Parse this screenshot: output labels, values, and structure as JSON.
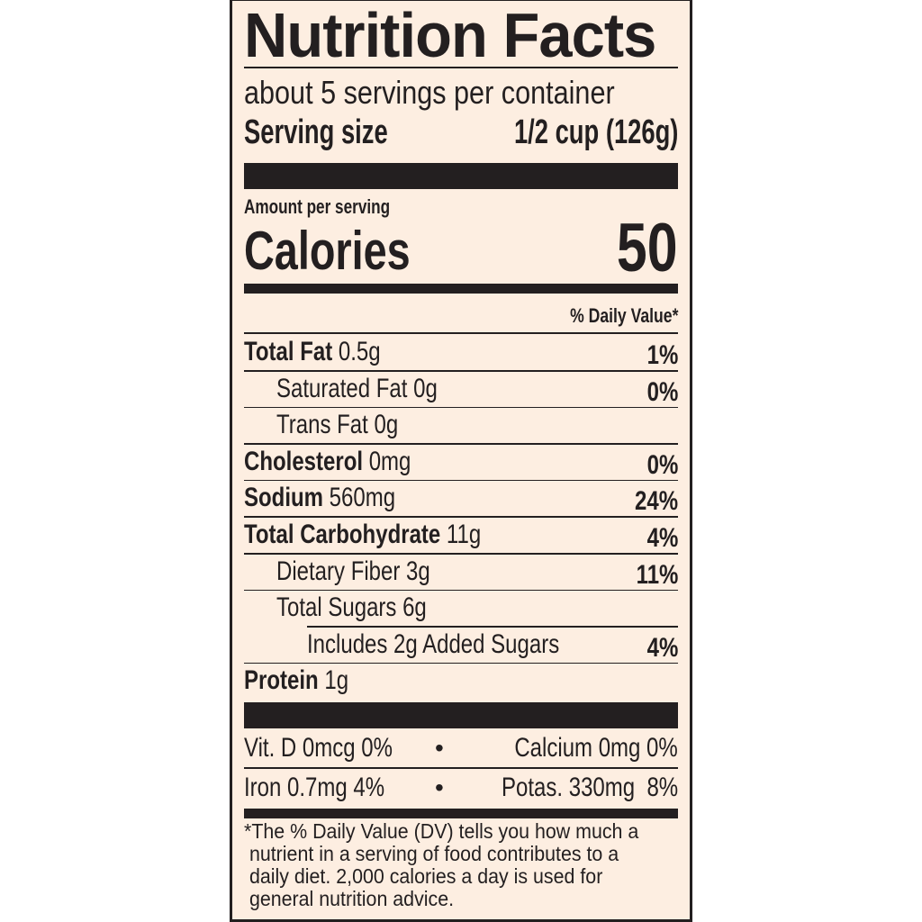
{
  "title": "Nutrition Facts",
  "servings_per_container": "about 5 servings per container",
  "serving_size": {
    "label": "Serving size",
    "value": "1/2 cup (126g)"
  },
  "amount_per_serving": "Amount per serving",
  "calories": {
    "label": "Calories",
    "value": "50"
  },
  "daily_value_header": "% Daily Value*",
  "nutrients": [
    {
      "name": "Total Fat",
      "amount": "0.5g",
      "dv": "1%",
      "bold": true,
      "indent": 0
    },
    {
      "name": "Saturated Fat",
      "amount": "0g",
      "dv": "0%",
      "bold": false,
      "indent": 1
    },
    {
      "name": "Trans Fat",
      "amount": "0g",
      "dv": "",
      "bold": false,
      "indent": 1
    },
    {
      "name": "Cholesterol",
      "amount": "0mg",
      "dv": "0%",
      "bold": true,
      "indent": 0
    },
    {
      "name": "Sodium",
      "amount": "560mg",
      "dv": "24%",
      "bold": true,
      "indent": 0
    },
    {
      "name": "Total Carbohydrate",
      "amount": "11g",
      "dv": "4%",
      "bold": true,
      "indent": 0
    },
    {
      "name": "Dietary Fiber",
      "amount": "3g",
      "dv": "11%",
      "bold": false,
      "indent": 1
    },
    {
      "name": "Total Sugars",
      "amount": "6g",
      "dv": "",
      "bold": false,
      "indent": 1
    },
    {
      "name": "Includes 2g Added Sugars",
      "amount": "",
      "dv": "4%",
      "bold": false,
      "indent": 2
    },
    {
      "name": "Protein",
      "amount": "1g",
      "dv": "",
      "bold": true,
      "indent": 0
    }
  ],
  "vitamins": [
    {
      "left": "Vit. D 0mcg 0%",
      "right": "Calcium 0mg 0%"
    },
    {
      "left": "Iron 0.7mg 4%",
      "right": "Potas. 330mg  8%"
    }
  ],
  "bullet": "•",
  "footnote": [
    "*The % Daily Value (DV) tells you how much a",
    " nutrient in a serving of food contributes to a",
    " daily diet. 2,000 calories a day is used for",
    " general nutrition advice."
  ],
  "colors": {
    "background": "#fdeee1",
    "ink": "#231f20"
  }
}
